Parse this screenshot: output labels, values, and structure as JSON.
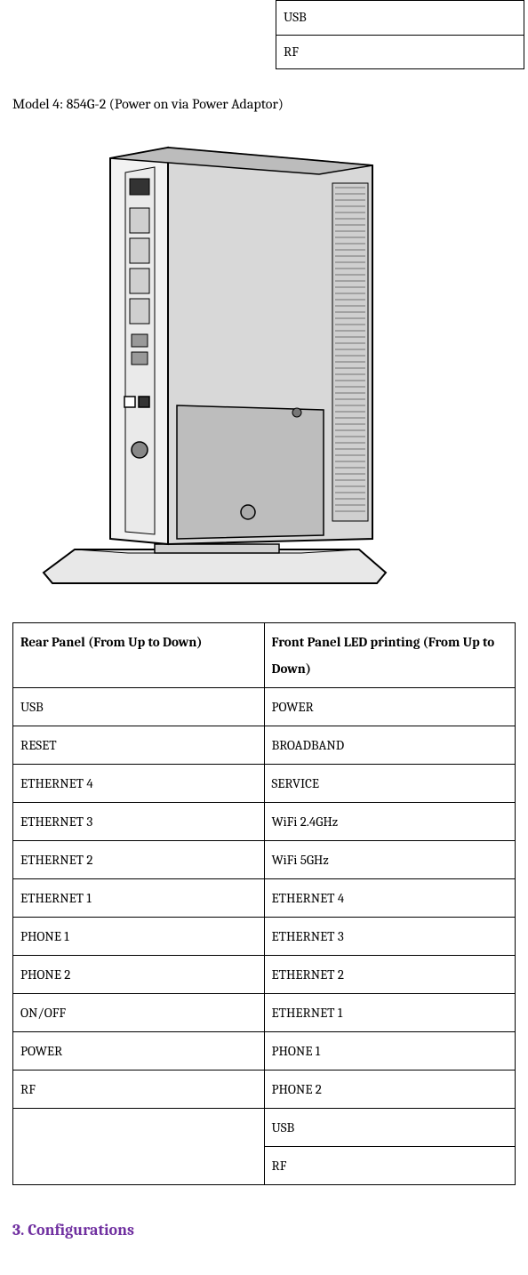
{
  "top_fragment_rows": [
    "USB",
    "RF"
  ],
  "model_title": "Model 4: 854G-2 (Power on via Power Adaptor)",
  "table": {
    "header_rear": "Rear Panel (From Up to Down)",
    "header_front": "Front Panel LED printing (From Up to Down)",
    "rows": [
      {
        "rear": "USB",
        "front": "POWER"
      },
      {
        "rear": "RESET",
        "front": "BROADBAND"
      },
      {
        "rear": "ETHERNET 4",
        "front": "SERVICE"
      },
      {
        "rear": "ETHERNET 3",
        "front": "WiFi 2.4GHz"
      },
      {
        "rear": "ETHERNET 2",
        "front": "WiFi 5GHz"
      },
      {
        "rear": "ETHERNET 1",
        "front": "ETHERNET 4"
      },
      {
        "rear": "PHONE 1",
        "front": "ETHERNET 3"
      },
      {
        "rear": "PHONE 2",
        "front": "ETHERNET 2"
      },
      {
        "rear": "ON/OFF",
        "front": "ETHERNET 1"
      },
      {
        "rear": "POWER",
        "front": "PHONE 1"
      },
      {
        "rear": "RF",
        "front": "PHONE 2"
      },
      {
        "rear": "",
        "front": "USB"
      },
      {
        "rear": "",
        "front": "RF"
      }
    ]
  },
  "section_heading": "3.   Configurations",
  "colors": {
    "heading": "#7030a0",
    "border": "#000000",
    "text": "#000000",
    "bg": "#ffffff",
    "device_light": "#e8e8e8",
    "device_mid": "#c8c8c8",
    "device_dark": "#888888",
    "device_outline": "#000000"
  }
}
